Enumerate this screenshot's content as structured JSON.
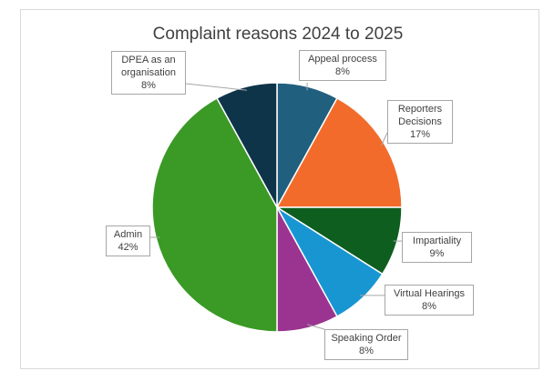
{
  "chart_data": {
    "type": "pie",
    "title": "Complaint reasons 2024 to 2025",
    "categories": [
      "Appeal process",
      "Reporters Decisions",
      "Impartiality",
      "Virtual Hearings",
      "Speaking Order",
      "Admin",
      "DPEA as an organisation"
    ],
    "values": [
      8,
      17,
      9,
      8,
      8,
      42,
      8
    ],
    "value_labels": [
      "8%",
      "17%",
      "9%",
      "8%",
      "8%",
      "42%",
      "8%"
    ],
    "colors": [
      "#215f7f",
      "#f26b2a",
      "#0e5e1f",
      "#1896d2",
      "#9b3490",
      "#3a9a25",
      "#0e3449"
    ]
  }
}
